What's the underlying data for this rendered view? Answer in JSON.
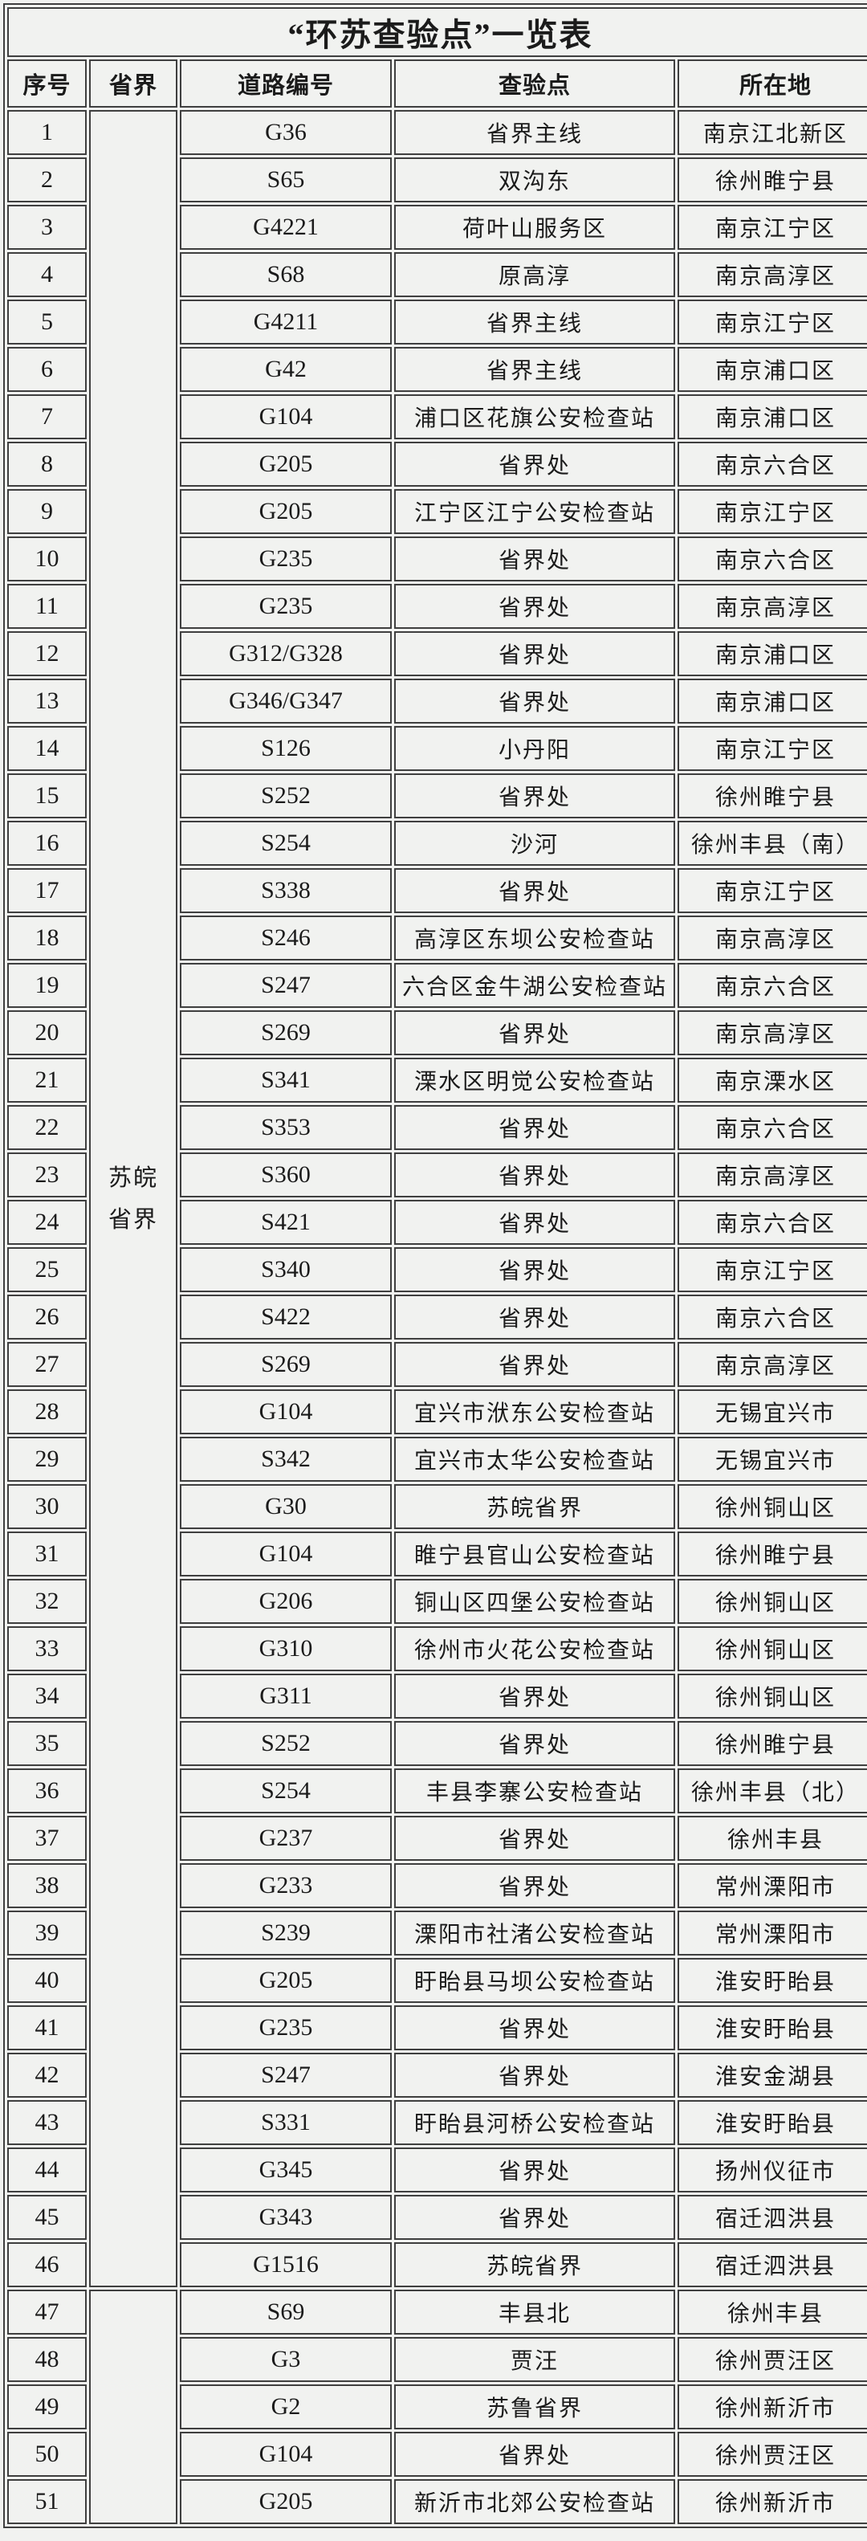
{
  "title": "“环苏查验点”一览表",
  "columns": [
    "序号",
    "省界",
    "道路编号",
    "查验点",
    "所在地"
  ],
  "groups": [
    {
      "lines": [
        "苏皖",
        "省界"
      ],
      "span": 46
    },
    {
      "lines": [
        ""
      ],
      "span": 5
    }
  ],
  "rows": [
    {
      "no": "1",
      "road": "G36",
      "checkpoint": "省界主线",
      "location": "南京江北新区"
    },
    {
      "no": "2",
      "road": "S65",
      "checkpoint": "双沟东",
      "location": "徐州睢宁县"
    },
    {
      "no": "3",
      "road": "G4221",
      "checkpoint": "荷叶山服务区",
      "location": "南京江宁区"
    },
    {
      "no": "4",
      "road": "S68",
      "checkpoint": "原高淳",
      "location": "南京高淳区"
    },
    {
      "no": "5",
      "road": "G4211",
      "checkpoint": "省界主线",
      "location": "南京江宁区"
    },
    {
      "no": "6",
      "road": "G42",
      "checkpoint": "省界主线",
      "location": "南京浦口区"
    },
    {
      "no": "7",
      "road": "G104",
      "checkpoint": "浦口区花旗公安检查站",
      "location": "南京浦口区"
    },
    {
      "no": "8",
      "road": "G205",
      "checkpoint": "省界处",
      "location": "南京六合区"
    },
    {
      "no": "9",
      "road": "G205",
      "checkpoint": "江宁区江宁公安检查站",
      "location": "南京江宁区"
    },
    {
      "no": "10",
      "road": "G235",
      "checkpoint": "省界处",
      "location": "南京六合区"
    },
    {
      "no": "11",
      "road": "G235",
      "checkpoint": "省界处",
      "location": "南京高淳区"
    },
    {
      "no": "12",
      "road": "G312/G328",
      "checkpoint": "省界处",
      "location": "南京浦口区"
    },
    {
      "no": "13",
      "road": "G346/G347",
      "checkpoint": "省界处",
      "location": "南京浦口区"
    },
    {
      "no": "14",
      "road": "S126",
      "checkpoint": "小丹阳",
      "location": "南京江宁区"
    },
    {
      "no": "15",
      "road": "S252",
      "checkpoint": "省界处",
      "location": "徐州睢宁县"
    },
    {
      "no": "16",
      "road": "S254",
      "checkpoint": "沙河",
      "location": "徐州丰县（南）"
    },
    {
      "no": "17",
      "road": "S338",
      "checkpoint": "省界处",
      "location": "南京江宁区"
    },
    {
      "no": "18",
      "road": "S246",
      "checkpoint": "高淳区东坝公安检查站",
      "location": "南京高淳区"
    },
    {
      "no": "19",
      "road": "S247",
      "checkpoint": "六合区金牛湖公安检查站",
      "location": "南京六合区"
    },
    {
      "no": "20",
      "road": "S269",
      "checkpoint": "省界处",
      "location": "南京高淳区"
    },
    {
      "no": "21",
      "road": "S341",
      "checkpoint": "溧水区明觉公安检查站",
      "location": "南京溧水区"
    },
    {
      "no": "22",
      "road": "S353",
      "checkpoint": "省界处",
      "location": "南京六合区"
    },
    {
      "no": "23",
      "road": "S360",
      "checkpoint": "省界处",
      "location": "南京高淳区"
    },
    {
      "no": "24",
      "road": "S421",
      "checkpoint": "省界处",
      "location": "南京六合区"
    },
    {
      "no": "25",
      "road": "S340",
      "checkpoint": "省界处",
      "location": "南京江宁区"
    },
    {
      "no": "26",
      "road": "S422",
      "checkpoint": "省界处",
      "location": "南京六合区"
    },
    {
      "no": "27",
      "road": "S269",
      "checkpoint": "省界处",
      "location": "南京高淳区"
    },
    {
      "no": "28",
      "road": "G104",
      "checkpoint": "宜兴市洑东公安检查站",
      "location": "无锡宜兴市"
    },
    {
      "no": "29",
      "road": "S342",
      "checkpoint": "宜兴市太华公安检查站",
      "location": "无锡宜兴市"
    },
    {
      "no": "30",
      "road": "G30",
      "checkpoint": "苏皖省界",
      "location": "徐州铜山区"
    },
    {
      "no": "31",
      "road": "G104",
      "checkpoint": "睢宁县官山公安检查站",
      "location": "徐州睢宁县"
    },
    {
      "no": "32",
      "road": "G206",
      "checkpoint": "铜山区四堡公安检查站",
      "location": "徐州铜山区"
    },
    {
      "no": "33",
      "road": "G310",
      "checkpoint": "徐州市火花公安检查站",
      "location": "徐州铜山区"
    },
    {
      "no": "34",
      "road": "G311",
      "checkpoint": "省界处",
      "location": "徐州铜山区"
    },
    {
      "no": "35",
      "road": "S252",
      "checkpoint": "省界处",
      "location": "徐州睢宁县"
    },
    {
      "no": "36",
      "road": "S254",
      "checkpoint": "丰县李寨公安检查站",
      "location": "徐州丰县（北）"
    },
    {
      "no": "37",
      "road": "G237",
      "checkpoint": "省界处",
      "location": "徐州丰县"
    },
    {
      "no": "38",
      "road": "G233",
      "checkpoint": "省界处",
      "location": "常州溧阳市"
    },
    {
      "no": "39",
      "road": "S239",
      "checkpoint": "溧阳市社渚公安检查站",
      "location": "常州溧阳市"
    },
    {
      "no": "40",
      "road": "G205",
      "checkpoint": "盱眙县马坝公安检查站",
      "location": "淮安盱眙县"
    },
    {
      "no": "41",
      "road": "G235",
      "checkpoint": "省界处",
      "location": "淮安盱眙县"
    },
    {
      "no": "42",
      "road": "S247",
      "checkpoint": "省界处",
      "location": "淮安金湖县"
    },
    {
      "no": "43",
      "road": "S331",
      "checkpoint": "盱眙县河桥公安检查站",
      "location": "淮安盱眙县"
    },
    {
      "no": "44",
      "road": "G345",
      "checkpoint": "省界处",
      "location": "扬州仪征市"
    },
    {
      "no": "45",
      "road": "G343",
      "checkpoint": "省界处",
      "location": "宿迁泗洪县"
    },
    {
      "no": "46",
      "road": "G1516",
      "checkpoint": "苏皖省界",
      "location": "宿迁泗洪县"
    },
    {
      "no": "47",
      "road": "S69",
      "checkpoint": "丰县北",
      "location": "徐州丰县"
    },
    {
      "no": "48",
      "road": "G3",
      "checkpoint": "贾汪",
      "location": "徐州贾汪区"
    },
    {
      "no": "49",
      "road": "G2",
      "checkpoint": "苏鲁省界",
      "location": "徐州新沂市"
    },
    {
      "no": "50",
      "road": "G104",
      "checkpoint": "省界处",
      "location": "徐州贾汪区"
    },
    {
      "no": "51",
      "road": "G205",
      "checkpoint": "新沂市北郊公安检查站",
      "location": "徐州新沂市"
    }
  ]
}
